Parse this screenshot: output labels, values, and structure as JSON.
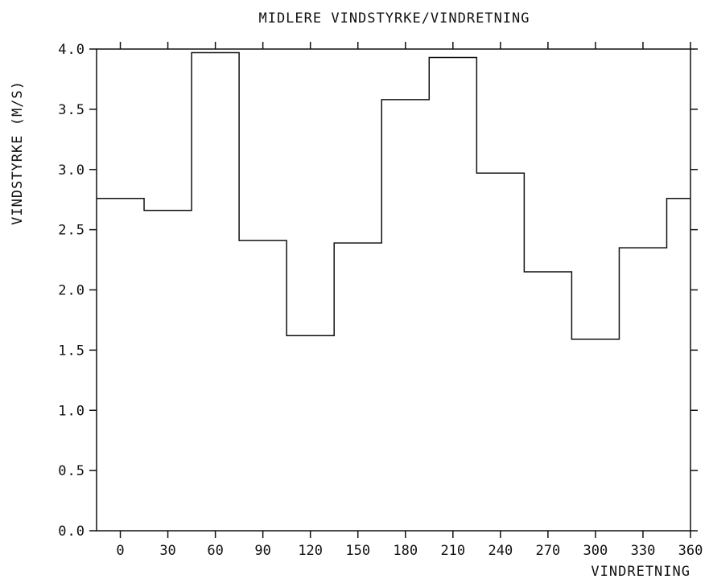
{
  "chart_data": {
    "type": "line",
    "step": true,
    "title": "MIDLERE VINDSTYRKE/VINDRETNING",
    "xlabel": "VINDRETNING",
    "ylabel": "VINDSTYRKE  (M/S)",
    "xlim": [
      -15,
      360
    ],
    "ylim": [
      0.0,
      4.0
    ],
    "x_ticks": [
      0,
      30,
      60,
      90,
      120,
      150,
      180,
      210,
      240,
      270,
      300,
      330,
      360
    ],
    "x_tick_labels": [
      "0",
      "30",
      "60",
      "90",
      "120",
      "150",
      "180",
      "210",
      "240",
      "270",
      "300",
      "330",
      "360"
    ],
    "y_ticks": [
      0.0,
      0.5,
      1.0,
      1.5,
      2.0,
      2.5,
      3.0,
      3.5,
      4.0
    ],
    "y_tick_labels": [
      "0.0",
      "0.5",
      "1.0",
      "1.5",
      "2.0",
      "2.5",
      "3.0",
      "3.5",
      "4.0"
    ],
    "grid": false,
    "line_color": "#111111",
    "series": [
      {
        "x": [
          0,
          30,
          60,
          90,
          120,
          150,
          180,
          210,
          240,
          270,
          300,
          330,
          360
        ],
        "values": [
          2.76,
          2.66,
          3.97,
          2.41,
          1.62,
          2.39,
          3.58,
          3.93,
          2.97,
          2.15,
          1.59,
          2.35,
          2.76
        ]
      }
    ]
  }
}
